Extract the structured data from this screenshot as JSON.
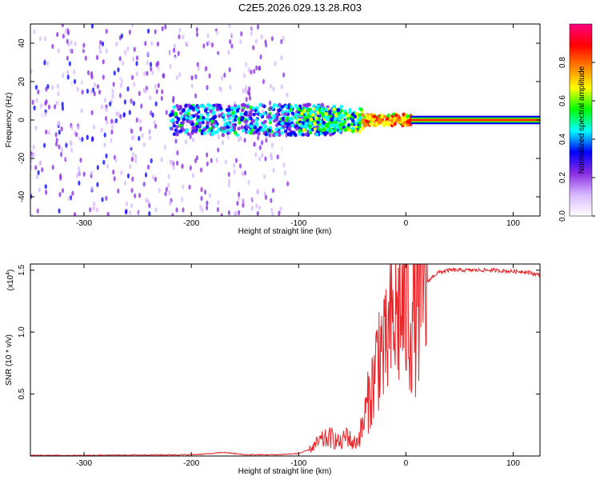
{
  "title": "C2E5.2026.029.13.28.R03",
  "chart_data": [
    {
      "id": "spectrogram",
      "type": "heatmap",
      "xlabel": "Height of straight line (km)",
      "ylabel": "Frequency (Hz)",
      "xlim": [
        -350,
        125
      ],
      "ylim": [
        -50,
        50
      ],
      "xticks": [
        -300,
        -200,
        -100,
        0,
        100
      ],
      "yticks": [
        -40,
        -20,
        0,
        20,
        40
      ],
      "colorbar": {
        "label": "Normalized spectral amplitude",
        "range": [
          0.0,
          1.0
        ],
        "ticks": [
          "0.0",
          "0.2",
          "0.4",
          "0.6",
          "0.8"
        ],
        "colormap": [
          "#ffffff",
          "#d8b8ff",
          "#8a2be2",
          "#0000ff",
          "#00ffff",
          "#00ff00",
          "#ffff00",
          "#ff8000",
          "#ff0000",
          "#ff0080"
        ]
      },
      "description_bands": [
        {
          "x_from": -350,
          "x_to": -230,
          "freq_spread": 50,
          "amplitude": 0.15
        },
        {
          "x_from": -230,
          "x_to": -110,
          "freq_spread": 50,
          "amplitude": 0.1
        },
        {
          "x_from": -220,
          "x_to": -60,
          "freq_spread": 8,
          "amplitude": 0.35
        },
        {
          "x_from": -100,
          "x_to": -40,
          "freq_spread": 6,
          "amplitude": 0.5
        },
        {
          "x_from": -40,
          "x_to": 5,
          "freq_spread": 3,
          "amplitude": 0.75
        },
        {
          "x_from": 5,
          "x_to": 125,
          "freq_spread": 1,
          "amplitude": 0.95
        }
      ]
    },
    {
      "id": "snr",
      "type": "line",
      "xlabel": "Height of straight line (km)",
      "ylabel": "SNR (10 * v/v)",
      "y_multiplier": "(x10",
      "y_multiplier_exp": "4",
      "y_multiplier_close": ")",
      "xlim": [
        -350,
        125
      ],
      "ylim": [
        0,
        1.55
      ],
      "xticks": [
        -300,
        -200,
        -100,
        0,
        100
      ],
      "yticks": [
        0.5,
        1.0,
        1.5
      ],
      "color": "#e8262a",
      "series": [
        {
          "name": "SNR",
          "x": [
            -350,
            -300,
            -250,
            -200,
            -180,
            -170,
            -150,
            -120,
            -100,
            -90,
            -80,
            -70,
            -60,
            -55,
            -50,
            -45,
            -40,
            -35,
            -30,
            -25,
            -20,
            -15,
            -10,
            -5,
            0,
            5,
            10,
            15,
            20,
            25,
            30,
            40,
            50,
            60,
            80,
            100,
            110,
            120,
            125
          ],
          "y": [
            0.005,
            0.005,
            0.008,
            0.01,
            0.02,
            0.03,
            0.01,
            0.01,
            0.02,
            0.05,
            0.12,
            0.15,
            0.1,
            0.18,
            0.1,
            0.12,
            0.25,
            0.45,
            0.6,
            0.9,
            0.8,
            1.0,
            1.1,
            1.2,
            1.15,
            1.1,
            1.2,
            1.3,
            1.4,
            1.45,
            1.48,
            1.5,
            1.5,
            1.5,
            1.5,
            1.49,
            1.49,
            1.47,
            1.46
          ]
        }
      ]
    }
  ]
}
